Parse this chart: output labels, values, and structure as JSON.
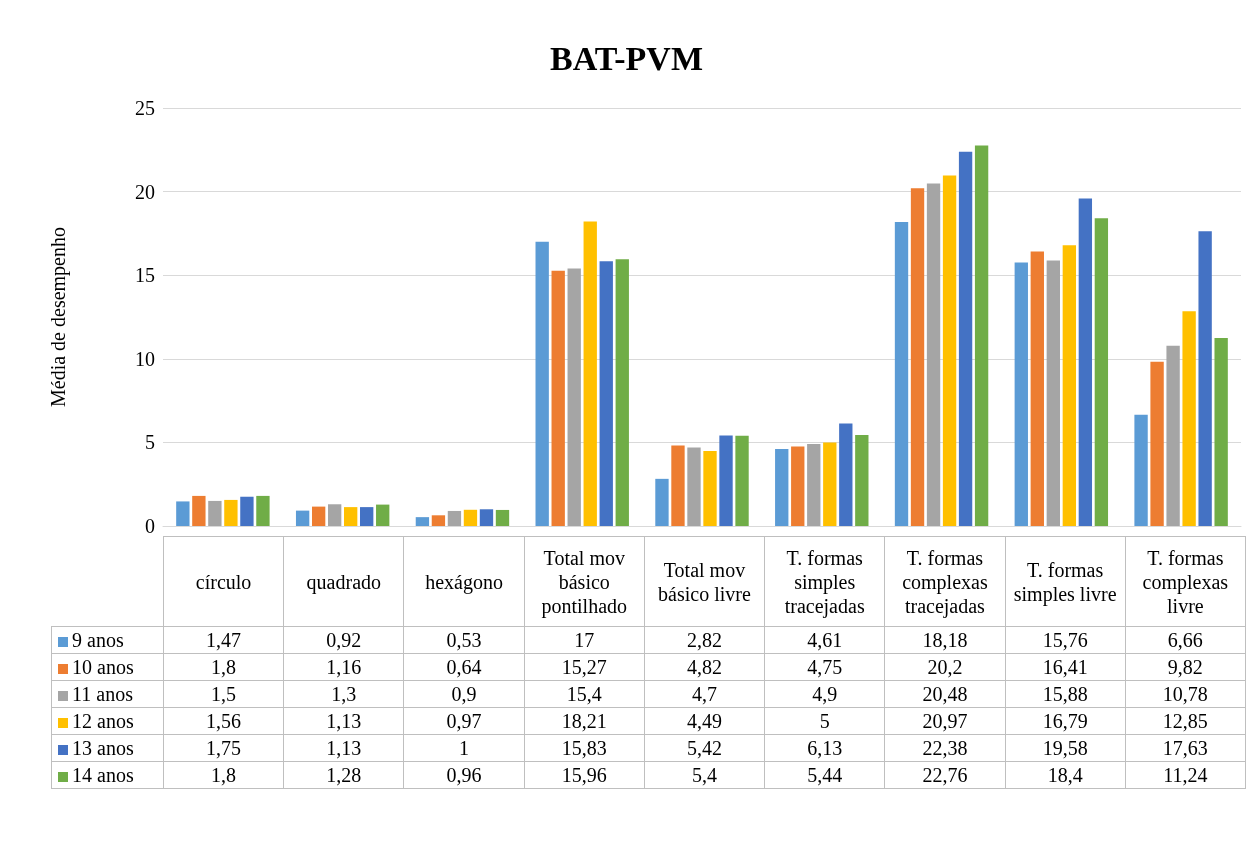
{
  "chart_data": {
    "type": "bar",
    "title": "BAT-PVM",
    "ylabel": "Média de desempenho",
    "categories": [
      "círculo",
      "quadrado",
      "hexágono",
      "Total mov básico pontilhado",
      "Total mov básico livre",
      "T. formas simples tracejadas",
      "T. formas complexas tracejadas",
      "T. formas simples livre",
      "T. formas complexas livre"
    ],
    "series": [
      {
        "name": "9 anos",
        "color": "#5b9bd5",
        "values": [
          1.47,
          0.92,
          0.53,
          17,
          2.82,
          4.61,
          18.18,
          15.76,
          6.66
        ],
        "value_labels": [
          "1,47",
          "0,92",
          "0,53",
          "17",
          "2,82",
          "4,61",
          "18,18",
          "15,76",
          "6,66"
        ]
      },
      {
        "name": "10 anos",
        "color": "#ed7d31",
        "values": [
          1.8,
          1.16,
          0.64,
          15.27,
          4.82,
          4.75,
          20.2,
          16.41,
          9.82
        ],
        "value_labels": [
          "1,8",
          "1,16",
          "0,64",
          "15,27",
          "4,82",
          "4,75",
          "20,2",
          "16,41",
          "9,82"
        ]
      },
      {
        "name": "11 anos",
        "color": "#a5a5a5",
        "values": [
          1.5,
          1.3,
          0.9,
          15.4,
          4.7,
          4.9,
          20.48,
          15.88,
          10.78
        ],
        "value_labels": [
          "1,5",
          "1,3",
          "0,9",
          "15,4",
          "4,7",
          "4,9",
          "20,48",
          "15,88",
          "10,78"
        ]
      },
      {
        "name": "12 anos",
        "color": "#ffc000",
        "values": [
          1.56,
          1.13,
          0.97,
          18.21,
          4.49,
          5,
          20.97,
          16.79,
          12.85
        ],
        "value_labels": [
          "1,56",
          "1,13",
          "0,97",
          "18,21",
          "4,49",
          "5",
          "20,97",
          "16,79",
          "12,85"
        ]
      },
      {
        "name": "13 anos",
        "color": "#4472c4",
        "values": [
          1.75,
          1.13,
          1,
          15.83,
          5.42,
          6.13,
          22.38,
          19.58,
          17.63
        ],
        "value_labels": [
          "1,75",
          "1,13",
          "1",
          "15,83",
          "5,42",
          "6,13",
          "22,38",
          "19,58",
          "17,63"
        ]
      },
      {
        "name": "14 anos",
        "color": "#70ad47",
        "values": [
          1.8,
          1.28,
          0.96,
          15.96,
          5.4,
          5.44,
          22.76,
          18.4,
          11.24
        ],
        "value_labels": [
          "1,8",
          "1,28",
          "0,96",
          "15,96",
          "5,4",
          "5,44",
          "22,76",
          "18,4",
          "11,24"
        ]
      }
    ],
    "ylim": [
      0,
      25
    ],
    "yticks": [
      0,
      5,
      10,
      15,
      20,
      25
    ],
    "grid": "y",
    "legend": "bottom left"
  }
}
